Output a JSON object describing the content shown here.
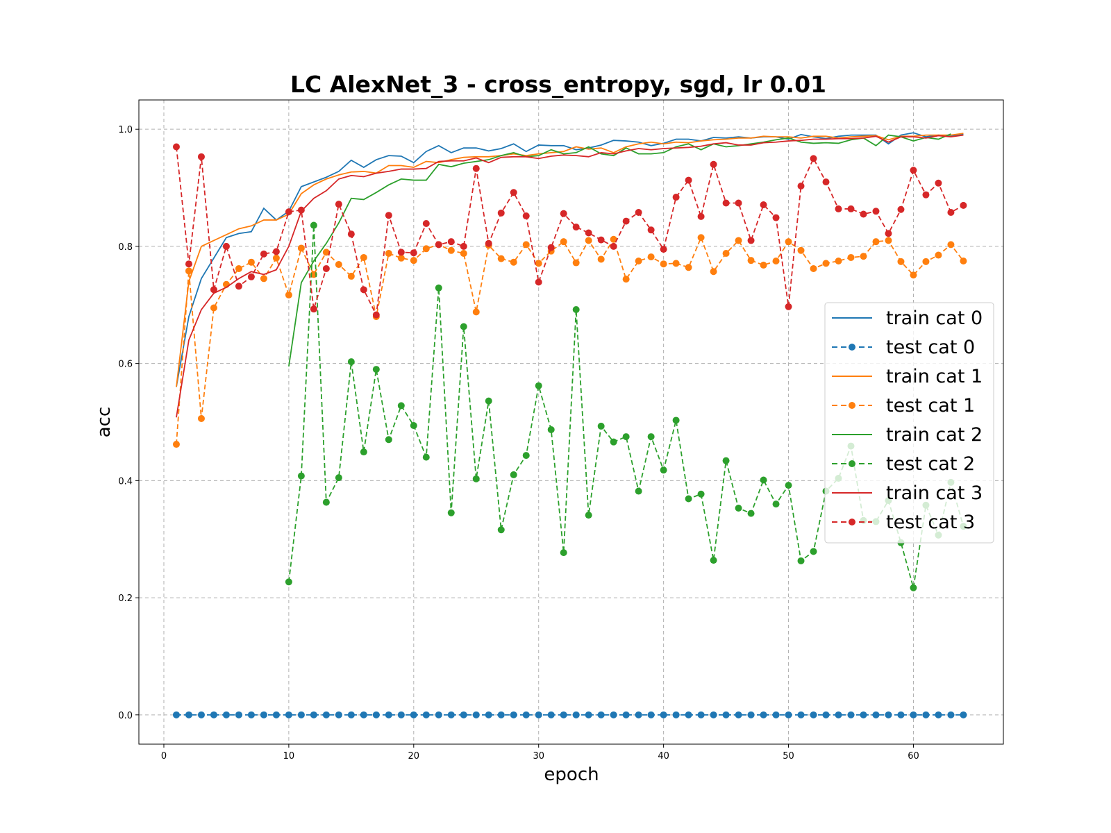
{
  "chart_data": {
    "type": "line",
    "title": "LC AlexNet_3 - cross_entropy, sgd, lr 0.01",
    "xlabel": "epoch",
    "ylabel": "acc",
    "xlim": [
      -2,
      67.2
    ],
    "ylim": [
      -0.05,
      1.05
    ],
    "xticks": [
      0,
      10,
      20,
      30,
      40,
      50,
      60
    ],
    "yticks": [
      0.0,
      0.2,
      0.4,
      0.6,
      0.8,
      1.0
    ],
    "grid": true,
    "legend_position": "right",
    "series": [
      {
        "name": "train cat 0",
        "color": "#1f77b4",
        "style": "solid",
        "marker": false,
        "x_start": 1,
        "values": [
          0.56,
          0.68,
          0.745,
          0.78,
          0.815,
          0.822,
          0.825,
          0.865,
          0.845,
          0.86,
          0.902,
          0.91,
          0.918,
          0.928,
          0.947,
          0.935,
          0.948,
          0.955,
          0.954,
          0.943,
          0.962,
          0.972,
          0.96,
          0.968,
          0.968,
          0.963,
          0.967,
          0.975,
          0.962,
          0.973,
          0.972,
          0.972,
          0.965,
          0.968,
          0.973,
          0.981,
          0.98,
          0.978,
          0.972,
          0.976,
          0.983,
          0.983,
          0.98,
          0.986,
          0.985,
          0.987,
          0.985,
          0.987,
          0.987,
          0.983,
          0.991,
          0.987,
          0.984,
          0.988,
          0.99,
          0.99,
          0.99,
          0.975,
          0.99,
          0.994,
          0.987,
          0.99,
          0.988,
          0.992
        ]
      },
      {
        "name": "test cat 0",
        "color": "#1f77b4",
        "style": "dashed",
        "marker": true,
        "x_start": 1,
        "values": [
          0,
          0,
          0,
          0,
          0,
          0,
          0,
          0,
          0,
          0,
          0,
          0,
          0,
          0,
          0,
          0,
          0,
          0,
          0,
          0,
          0,
          0,
          0,
          0,
          0,
          0,
          0,
          0,
          0,
          0,
          0,
          0,
          0,
          0,
          0,
          0,
          0,
          0,
          0,
          0,
          0,
          0,
          0,
          0,
          0,
          0,
          0,
          0,
          0,
          0,
          0,
          0,
          0,
          0,
          0,
          0,
          0,
          0,
          0,
          0,
          0,
          0,
          0,
          0
        ]
      },
      {
        "name": "train cat 1",
        "color": "#ff7f0e",
        "style": "solid",
        "marker": false,
        "x_start": 1,
        "values": [
          0.56,
          0.74,
          0.8,
          0.81,
          0.82,
          0.83,
          0.835,
          0.845,
          0.845,
          0.855,
          0.89,
          0.905,
          0.915,
          0.922,
          0.927,
          0.928,
          0.925,
          0.938,
          0.938,
          0.935,
          0.945,
          0.943,
          0.948,
          0.952,
          0.953,
          0.953,
          0.955,
          0.958,
          0.955,
          0.958,
          0.96,
          0.962,
          0.97,
          0.966,
          0.968,
          0.96,
          0.97,
          0.975,
          0.978,
          0.975,
          0.978,
          0.977,
          0.98,
          0.982,
          0.983,
          0.985,
          0.985,
          0.988,
          0.987,
          0.987,
          0.985,
          0.988,
          0.988,
          0.985,
          0.987,
          0.988,
          0.989,
          0.982,
          0.988,
          0.988,
          0.99,
          0.99,
          0.99,
          0.993
        ]
      },
      {
        "name": "test cat 1",
        "color": "#ff7f0e",
        "style": "dashed",
        "marker": true,
        "x_start": 1,
        "values": [
          0.462,
          0.758,
          0.506,
          0.695,
          0.735,
          0.762,
          0.773,
          0.745,
          0.78,
          0.717,
          0.797,
          0.752,
          0.79,
          0.769,
          0.749,
          0.781,
          0.68,
          0.788,
          0.78,
          0.776,
          0.796,
          0.803,
          0.793,
          0.788,
          0.688,
          0.802,
          0.779,
          0.773,
          0.803,
          0.771,
          0.792,
          0.808,
          0.772,
          0.81,
          0.778,
          0.812,
          0.744,
          0.775,
          0.782,
          0.77,
          0.771,
          0.764,
          0.815,
          0.757,
          0.788,
          0.81,
          0.776,
          0.768,
          0.775,
          0.808,
          0.793,
          0.762,
          0.771,
          0.775,
          0.781,
          0.783,
          0.808,
          0.81,
          0.774,
          0.751,
          0.774,
          0.785,
          0.803,
          0.775
        ]
      },
      {
        "name": "train cat 2",
        "color": "#2ca02c",
        "style": "solid",
        "marker": false,
        "x_start": 10,
        "values": [
          0.595,
          0.738,
          0.775,
          0.805,
          0.84,
          0.882,
          0.88,
          0.892,
          0.905,
          0.915,
          0.913,
          0.913,
          0.94,
          0.936,
          0.942,
          0.945,
          0.948,
          0.955,
          0.96,
          0.953,
          0.955,
          0.965,
          0.958,
          0.96,
          0.97,
          0.958,
          0.955,
          0.968,
          0.958,
          0.958,
          0.96,
          0.97,
          0.975,
          0.965,
          0.975,
          0.97,
          0.972,
          0.975,
          0.978,
          0.982,
          0.985,
          0.978,
          0.976,
          0.977,
          0.976,
          0.982,
          0.985,
          0.972,
          0.99,
          0.987,
          0.98,
          0.986,
          0.983,
          0.992
        ]
      },
      {
        "name": "test cat 2",
        "color": "#2ca02c",
        "style": "dashed",
        "marker": true,
        "x_start": 10,
        "values": [
          0.227,
          0.408,
          0.836,
          0.363,
          0.405,
          0.603,
          0.449,
          0.59,
          0.47,
          0.528,
          0.494,
          0.44,
          0.729,
          0.345,
          0.663,
          0.403,
          0.536,
          0.316,
          0.41,
          0.443,
          0.562,
          0.487,
          0.277,
          0.692,
          0.341,
          0.493,
          0.466,
          0.475,
          0.382,
          0.475,
          0.418,
          0.503,
          0.369,
          0.377,
          0.264,
          0.434,
          0.353,
          0.344,
          0.401,
          0.36,
          0.392,
          0.263,
          0.279,
          0.382,
          0.404,
          0.459,
          0.332,
          0.33,
          0.366,
          0.294,
          0.217,
          0.358,
          0.307,
          0.397,
          0.322
        ]
      },
      {
        "name": "train cat 3",
        "color": "#d62728",
        "style": "solid",
        "marker": false,
        "x_start": 1,
        "values": [
          0.508,
          0.64,
          0.692,
          0.72,
          0.73,
          0.745,
          0.757,
          0.752,
          0.76,
          0.8,
          0.86,
          0.882,
          0.895,
          0.915,
          0.921,
          0.919,
          0.925,
          0.928,
          0.932,
          0.932,
          0.933,
          0.945,
          0.946,
          0.946,
          0.951,
          0.943,
          0.952,
          0.953,
          0.953,
          0.95,
          0.954,
          0.956,
          0.955,
          0.953,
          0.96,
          0.958,
          0.963,
          0.967,
          0.965,
          0.967,
          0.968,
          0.969,
          0.971,
          0.975,
          0.977,
          0.973,
          0.973,
          0.977,
          0.978,
          0.98,
          0.981,
          0.983,
          0.983,
          0.984,
          0.984,
          0.985,
          0.988,
          0.978,
          0.987,
          0.987,
          0.985,
          0.989,
          0.987,
          0.99
        ]
      },
      {
        "name": "test cat 3",
        "color": "#d62728",
        "style": "dashed",
        "marker": true,
        "x_start": 1,
        "values": [
          0.97,
          0.77,
          0.953,
          0.726,
          0.8,
          0.732,
          0.748,
          0.787,
          0.791,
          0.859,
          0.862,
          0.693,
          0.762,
          0.872,
          0.821,
          0.726,
          0.683,
          0.853,
          0.79,
          0.789,
          0.839,
          0.803,
          0.808,
          0.8,
          0.933,
          0.805,
          0.857,
          0.892,
          0.852,
          0.739,
          0.798,
          0.856,
          0.833,
          0.823,
          0.811,
          0.8,
          0.843,
          0.858,
          0.828,
          0.795,
          0.884,
          0.913,
          0.851,
          0.94,
          0.874,
          0.874,
          0.81,
          0.871,
          0.849,
          0.697,
          0.903,
          0.95,
          0.91,
          0.864,
          0.864,
          0.855,
          0.86,
          0.822,
          0.863,
          0.93,
          0.888,
          0.908,
          0.858,
          0.87
        ]
      }
    ]
  }
}
